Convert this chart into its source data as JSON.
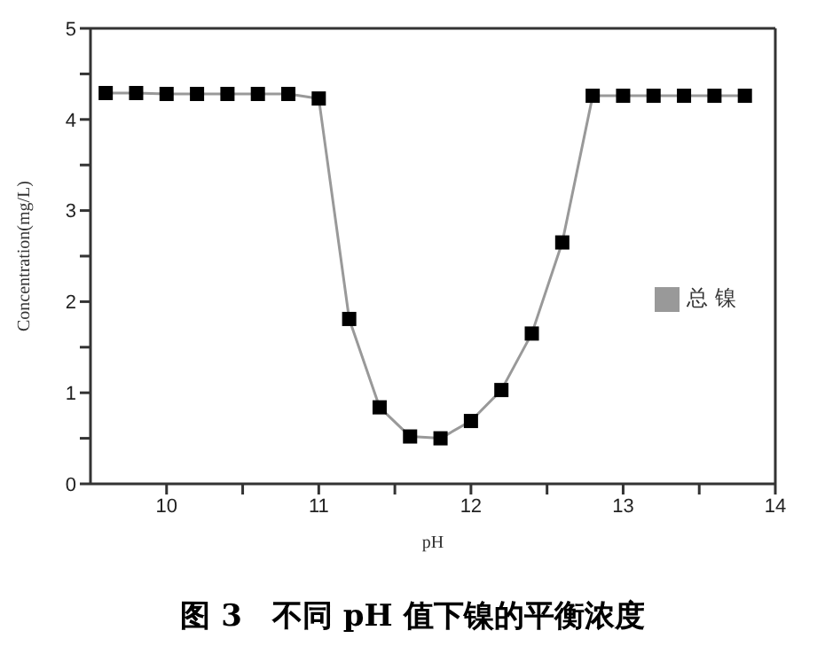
{
  "chart_data": {
    "type": "line",
    "title": "图 3　不同 pH 值下镍的平衡浓度",
    "xlabel": "pH",
    "ylabel": "Concentration(mg/L)",
    "x": [
      9.6,
      9.8,
      10.0,
      10.2,
      10.4,
      10.6,
      10.8,
      11.0,
      11.2,
      11.4,
      11.6,
      11.8,
      12.0,
      12.2,
      12.4,
      12.6,
      12.8,
      13.0,
      13.2,
      13.4,
      13.6,
      13.8
    ],
    "series": [
      {
        "name": "总 镍",
        "color": "#000000",
        "values": [
          4.29,
          4.29,
          4.28,
          4.28,
          4.28,
          4.28,
          4.28,
          4.23,
          1.81,
          0.84,
          0.52,
          0.5,
          0.69,
          1.03,
          1.65,
          2.65,
          4.26,
          4.26,
          4.26,
          4.26,
          4.26,
          4.26
        ]
      }
    ],
    "xlim": [
      9.5,
      14
    ],
    "xticks": [
      10,
      {
        "value": 10.5,
        "label": null
      },
      11,
      {
        "value": 11.5,
        "label": null
      },
      12,
      {
        "value": 12.5,
        "label": null
      },
      13,
      {
        "value": 13.5,
        "label": null
      },
      14
    ],
    "ylim": [
      0,
      5
    ],
    "yticks": [
      0,
      {
        "value": 0.5,
        "label": null
      },
      1,
      {
        "value": 1.5,
        "label": null
      },
      2,
      {
        "value": 2.5,
        "label": null
      },
      3,
      {
        "value": 3.5,
        "label": null
      },
      4,
      {
        "value": 4.5,
        "label": null
      },
      5
    ],
    "marker": "square",
    "line_style": "solid",
    "grid": false,
    "legend": "right"
  }
}
